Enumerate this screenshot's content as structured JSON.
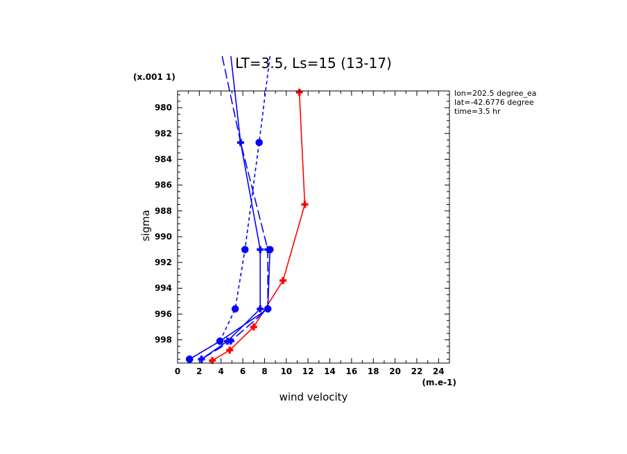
{
  "chart_data": {
    "type": "line",
    "title": "LT=3.5, Ls=15 (13-17)",
    "xlabel": "wind velocity",
    "ylabel": "sigma",
    "x_unit": "(m.e-1)",
    "y_unit": "(x.001 1)",
    "xlim": [
      0,
      25
    ],
    "ylim": [
      999.8,
      978.7
    ],
    "x_ticks": [
      0,
      2,
      4,
      6,
      8,
      10,
      12,
      14,
      16,
      18,
      20,
      22,
      24
    ],
    "y_ticks": [
      980,
      982,
      984,
      986,
      988,
      990,
      992,
      994,
      996,
      998
    ],
    "annotations": [
      "lon=202.5 degree_ea",
      "lat=-42.6776 degree",
      "time=3.5 hr"
    ],
    "series": [
      {
        "color": "#ff0000",
        "dash": "solid",
        "marker": "plus",
        "points": [
          [
            11.2,
            978.8
          ],
          [
            11.7,
            987.5
          ],
          [
            9.7,
            993.4
          ],
          [
            7.0,
            997.0
          ],
          [
            4.8,
            998.8
          ],
          [
            3.2,
            999.6
          ]
        ]
      },
      {
        "color": "#0000ff",
        "dash": "solid",
        "marker": "plus",
        "points": [
          [
            4.9,
            976.0
          ],
          [
            5.8,
            982.7
          ],
          [
            7.6,
            991.0
          ],
          [
            7.6,
            995.6
          ],
          [
            4.6,
            998.1
          ],
          [
            2.2,
            999.5
          ]
        ]
      },
      {
        "color": "#0000ff",
        "dash": "longdash",
        "marker": "plus",
        "points": [
          [
            4.1,
            976.0
          ],
          [
            5.8,
            982.7
          ],
          [
            8.3,
            991.0
          ],
          [
            8.3,
            995.6
          ],
          [
            4.9,
            998.1
          ],
          [
            2.2,
            999.5
          ]
        ]
      },
      {
        "color": "#0000ff",
        "dash": "solid",
        "marker": "circle",
        "points": [
          [
            8.5,
            991.0
          ],
          [
            8.3,
            995.6
          ],
          [
            3.9,
            998.1
          ],
          [
            1.1,
            999.5
          ]
        ]
      },
      {
        "color": "#0000ff",
        "dash": "dashed",
        "marker": "circle",
        "points": [
          [
            8.5,
            976.0
          ],
          [
            7.5,
            982.7
          ],
          [
            6.2,
            991.0
          ],
          [
            5.3,
            995.6
          ],
          [
            3.9,
            998.1
          ],
          [
            1.1,
            999.5
          ]
        ]
      }
    ]
  }
}
